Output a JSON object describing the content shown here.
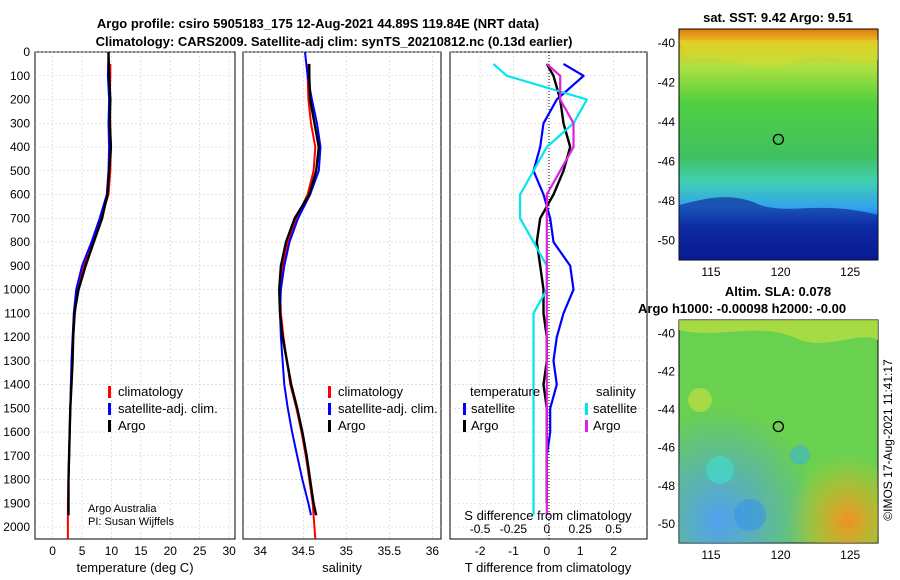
{
  "header": {
    "title_line1": "Argo profile: csiro 5905183_175 12-Aug-2021 44.89S 119.84E (NRT data)",
    "title_line2": "Climatology: CARS2009. Satellite-adj clim: synTS_20210812.nc (0.13d earlier)"
  },
  "colors": {
    "argo": "#000000",
    "climatology": "#ff0000",
    "satellite": "#0000ff",
    "sat_temp": "#0000ff",
    "sat_sal": "#00e5ee",
    "argo_sal": "#e020e0"
  },
  "chart_data": [
    {
      "type": "line",
      "name": "temperature-profile",
      "xlabel": "temperature (deg C)",
      "xlim": [
        -3,
        31
      ],
      "ylim": [
        2050,
        0
      ],
      "xticks": [
        "0",
        "5",
        "10",
        "15",
        "20",
        "25",
        "30"
      ],
      "yticks": [
        "0",
        "100",
        "200",
        "300",
        "400",
        "500",
        "600",
        "700",
        "800",
        "900",
        "1000",
        "1100",
        "1200",
        "1300",
        "1400",
        "1500",
        "1600",
        "1700",
        "1800",
        "1900",
        "2000"
      ],
      "legend": [
        "climatology",
        "satellite-adj. clim.",
        "Argo"
      ],
      "credit": [
        "Argo Australia",
        "PI: Susan Wijffels"
      ],
      "series": [
        {
          "name": "climatology",
          "x": [
            9.8,
            9.8,
            9.7,
            9.8,
            9.9,
            9.8,
            9.5,
            8.2,
            6.8,
            5.3,
            4.2,
            3.8,
            3.5,
            3.3,
            3.1,
            3.0,
            2.9,
            2.8,
            2.7,
            2.6,
            2.6
          ],
          "y": [
            50,
            100,
            200,
            300,
            400,
            500,
            600,
            700,
            800,
            900,
            1000,
            1100,
            1200,
            1300,
            1400,
            1500,
            1600,
            1700,
            1800,
            1900,
            2050
          ]
        },
        {
          "name": "satellite",
          "x": [
            9.5,
            9.4,
            9.6,
            9.5,
            9.6,
            9.5,
            9.2,
            8.0,
            6.6,
            5.0,
            4.0,
            3.6,
            3.4,
            3.2,
            3.1,
            3.0,
            2.9,
            2.8,
            2.7,
            2.7
          ],
          "y": [
            0,
            100,
            200,
            300,
            400,
            500,
            600,
            700,
            800,
            900,
            1000,
            1100,
            1200,
            1300,
            1400,
            1500,
            1600,
            1700,
            1800,
            1950
          ]
        },
        {
          "name": "argo",
          "x": [
            9.5,
            9.6,
            9.8,
            9.7,
            9.9,
            9.6,
            9.3,
            8.4,
            7.0,
            5.6,
            4.4,
            3.7,
            3.5,
            3.4,
            3.2,
            3.0,
            2.9,
            2.8,
            2.7,
            2.7
          ],
          "y": [
            0,
            100,
            200,
            300,
            400,
            500,
            600,
            700,
            800,
            900,
            1000,
            1100,
            1200,
            1300,
            1400,
            1500,
            1600,
            1700,
            1800,
            1950
          ]
        }
      ]
    },
    {
      "type": "line",
      "name": "salinity-profile",
      "xlabel": "salinity",
      "xlim": [
        33.8,
        36.1
      ],
      "ylim": [
        2050,
        0
      ],
      "xticks": [
        "34",
        "34.5",
        "35",
        "35.5",
        "36"
      ],
      "legend": [
        "climatology",
        "satellite-adj. clim.",
        "Argo"
      ],
      "series": [
        {
          "name": "climatology",
          "x": [
            34.56,
            34.55,
            34.56,
            34.59,
            34.64,
            34.62,
            34.55,
            34.42,
            34.32,
            34.26,
            34.23,
            34.24,
            34.27,
            34.31,
            34.35,
            34.42,
            34.48,
            34.53,
            34.57,
            34.61,
            34.64
          ],
          "y": [
            50,
            100,
            200,
            300,
            400,
            500,
            600,
            700,
            800,
            900,
            1000,
            1100,
            1200,
            1300,
            1400,
            1500,
            1600,
            1700,
            1800,
            1900,
            2050
          ]
        },
        {
          "name": "satellite",
          "x": [
            34.52,
            34.55,
            34.6,
            34.66,
            34.7,
            34.68,
            34.58,
            34.44,
            34.34,
            34.28,
            34.24,
            34.23,
            34.24,
            34.26,
            34.28,
            34.32,
            34.37,
            34.43,
            34.49,
            34.56,
            34.59
          ],
          "y": [
            0,
            100,
            200,
            300,
            400,
            500,
            600,
            700,
            800,
            900,
            1000,
            1100,
            1200,
            1300,
            1400,
            1500,
            1600,
            1700,
            1800,
            1900,
            1950
          ]
        },
        {
          "name": "argo",
          "x": [
            34.57,
            34.57,
            34.58,
            34.63,
            34.68,
            34.65,
            34.57,
            34.4,
            34.3,
            34.24,
            34.22,
            34.23,
            34.26,
            34.31,
            34.36,
            34.43,
            34.49,
            34.54,
            34.58,
            34.62,
            34.65
          ],
          "y": [
            50,
            100,
            200,
            300,
            400,
            500,
            600,
            700,
            800,
            900,
            1000,
            1100,
            1200,
            1300,
            1400,
            1500,
            1600,
            1700,
            1800,
            1900,
            1950
          ]
        }
      ]
    },
    {
      "type": "line",
      "name": "difference-from-climatology",
      "xlabel": "T difference from climatology",
      "x2label": "S difference from climatology",
      "xlim": [
        -2.9,
        3.0
      ],
      "ylim": [
        2050,
        0
      ],
      "xticks": [
        "-2",
        "-1",
        "0",
        "1",
        "2"
      ],
      "x2ticks": [
        "-0.5",
        "-0.25",
        "0",
        "0.25",
        "0.5"
      ],
      "legend_temperature_title": "temperature",
      "legend_salinity_title": "salinity",
      "legend_temperature": [
        "satellite",
        "Argo"
      ],
      "legend_salinity": [
        "satellite",
        "Argo"
      ],
      "series": [
        {
          "name": "satellite-temperature",
          "x": [
            0.5,
            1.1,
            0.3,
            -0.1,
            -0.2,
            -0.4,
            -0.1,
            0.1,
            0.2,
            0.7,
            0.8,
            0.5,
            0.3,
            0.2,
            0.3,
            0.1,
            0.1,
            0.0,
            0.0,
            0.0
          ],
          "y": [
            50,
            100,
            200,
            300,
            400,
            500,
            600,
            700,
            800,
            900,
            1000,
            1100,
            1200,
            1300,
            1400,
            1500,
            1600,
            1700,
            1800,
            1900
          ]
        },
        {
          "name": "argo-temperature",
          "x": [
            0.0,
            0.2,
            0.4,
            0.5,
            0.7,
            0.5,
            0.2,
            -0.2,
            -0.3,
            -0.2,
            -0.1,
            -0.1,
            0.0,
            0.0,
            -0.1,
            0.0,
            0.0,
            0.0,
            0.0,
            0.0
          ],
          "y": [
            50,
            100,
            200,
            300,
            400,
            500,
            600,
            700,
            800,
            900,
            1000,
            1100,
            1200,
            1300,
            1400,
            1500,
            1600,
            1700,
            1800,
            1900
          ]
        },
        {
          "name": "satellite-salinity",
          "x": [
            -0.4,
            -0.3,
            0.3,
            0.2,
            0.0,
            -0.1,
            -0.2,
            -0.2,
            -0.1,
            0.0,
            0.0,
            -0.1,
            -0.1,
            -0.1,
            -0.1,
            -0.1,
            -0.1,
            -0.1,
            -0.1,
            -0.1
          ],
          "y": [
            50,
            100,
            200,
            300,
            400,
            500,
            600,
            700,
            800,
            900,
            1000,
            1100,
            1200,
            1300,
            1400,
            1500,
            1600,
            1700,
            1800,
            1950
          ]
        },
        {
          "name": "argo-salinity",
          "x": [
            0.0,
            0.1,
            0.1,
            0.2,
            0.2,
            0.1,
            0.0,
            0.0,
            0.0,
            0.0,
            0.0,
            0.0,
            0.0,
            0.0,
            0.0,
            0.0,
            0.0,
            0.0,
            0.0,
            0.0
          ],
          "y": [
            50,
            100,
            200,
            300,
            400,
            500,
            600,
            700,
            800,
            900,
            1000,
            1100,
            1200,
            1300,
            1400,
            1500,
            1600,
            1700,
            1800,
            1950
          ]
        }
      ]
    },
    {
      "type": "heatmap",
      "name": "sst-map",
      "title": "sat. SST: 9.42 Argo: 9.51",
      "xticks": [
        "115",
        "120",
        "125"
      ],
      "yticks": [
        "-40",
        "-42",
        "-44",
        "-46",
        "-48",
        "-50"
      ],
      "marker": {
        "lon": 119.84,
        "lat": -44.89
      }
    },
    {
      "type": "heatmap",
      "name": "sla-map",
      "title": "Altim. SLA: 0.078",
      "subtitle": "Argo h1000: -0.00098 h2000: -0.00",
      "xticks": [
        "115",
        "120",
        "125"
      ],
      "yticks": [
        "-40",
        "-42",
        "-44",
        "-46",
        "-48",
        "-50"
      ],
      "marker": {
        "lon": 119.84,
        "lat": -44.89
      }
    }
  ],
  "footer": {
    "stamp": "©IMOS 17-Aug-2021 11:41:17"
  }
}
